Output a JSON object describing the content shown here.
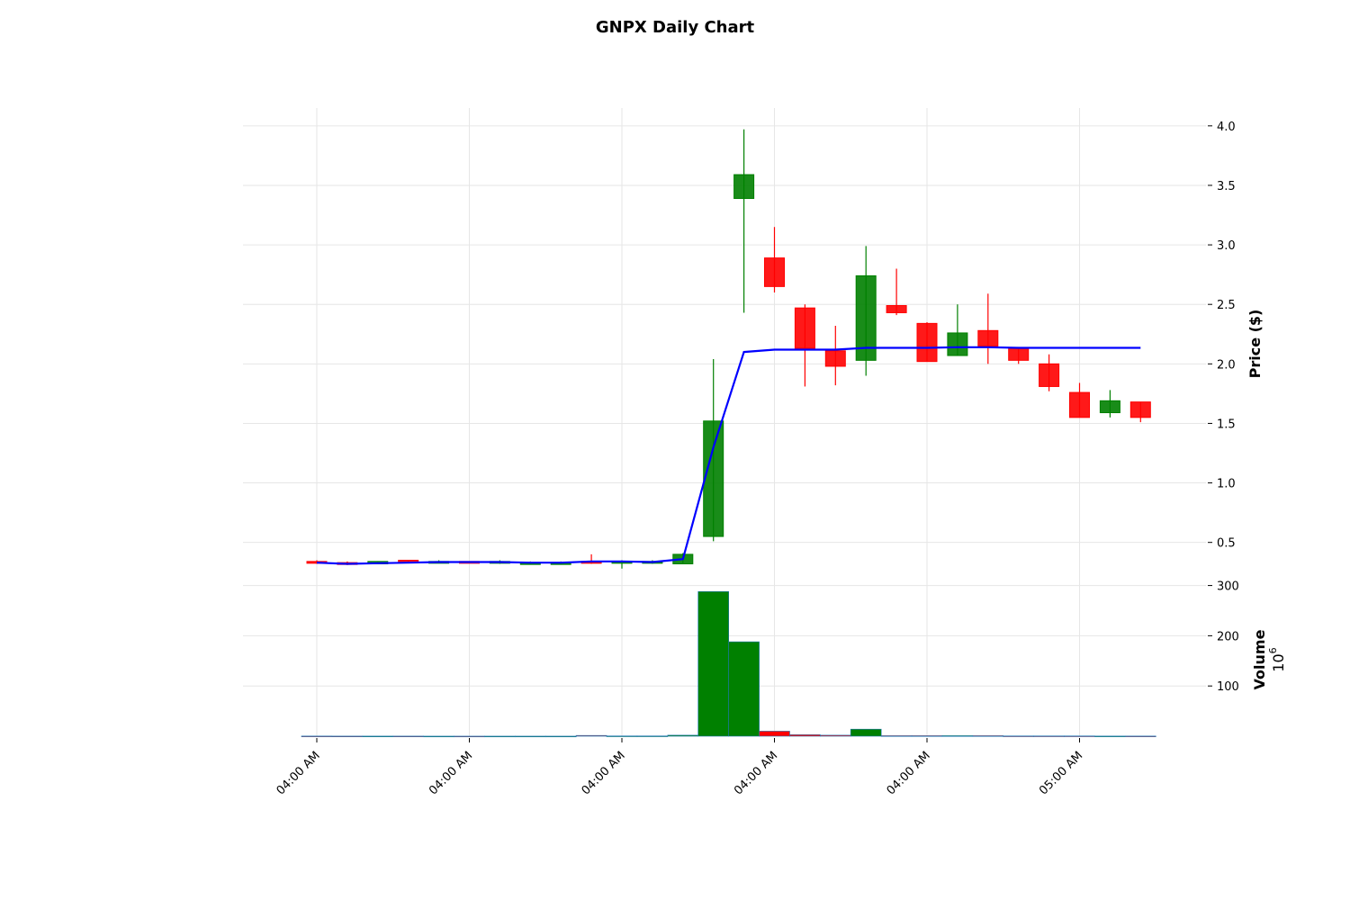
{
  "chart_data": {
    "type": "candlestick",
    "title": "GNPX Daily Chart",
    "colors": {
      "up": "#008000",
      "down": "#ff0000",
      "ma": "#0000ff",
      "grid": "#e6e6e6"
    },
    "x_tick_labels": [
      "04:00 AM",
      "04:00 AM",
      "04:00 AM",
      "04:00 AM",
      "04:00 AM",
      "05:00 AM"
    ],
    "x_tick_positions": [
      0,
      5,
      10,
      15,
      20,
      25
    ],
    "price_panel": {
      "ylabel": "Price ($)",
      "ylim": [
        0.18,
        4.15
      ],
      "yticks": [
        0.5,
        1.0,
        1.5,
        2.0,
        2.5,
        3.0,
        3.5,
        4.0
      ],
      "ytick_labels": [
        "0.5",
        "1.0",
        "1.5",
        "2.0",
        "2.5",
        "3.0",
        "3.5",
        "4.0"
      ]
    },
    "volume_panel": {
      "ylabel": "Volume",
      "multiplier_label": "10",
      "multiplier_exp": "6",
      "ylim": [
        0,
        310
      ],
      "yticks": [
        100,
        200,
        300
      ],
      "ytick_labels": [
        "100",
        "200",
        "300"
      ]
    },
    "candles": [
      {
        "i": 0,
        "open": 0.34,
        "high": 0.35,
        "low": 0.32,
        "close": 0.33,
        "volume": 0.3
      },
      {
        "i": 1,
        "open": 0.33,
        "high": 0.34,
        "low": 0.31,
        "close": 0.32,
        "volume": 0.2
      },
      {
        "i": 2,
        "open": 0.32,
        "high": 0.34,
        "low": 0.32,
        "close": 0.34,
        "volume": 0.2
      },
      {
        "i": 3,
        "open": 0.35,
        "high": 0.35,
        "low": 0.33,
        "close": 0.34,
        "volume": 0.2
      },
      {
        "i": 4,
        "open": 0.34,
        "high": 0.35,
        "low": 0.33,
        "close": 0.34,
        "volume": 0.1
      },
      {
        "i": 5,
        "open": 0.34,
        "high": 0.34,
        "low": 0.33,
        "close": 0.33,
        "volume": 0.1
      },
      {
        "i": 6,
        "open": 0.34,
        "high": 0.35,
        "low": 0.32,
        "close": 0.34,
        "volume": 0.1
      },
      {
        "i": 7,
        "open": 0.33,
        "high": 0.34,
        "low": 0.32,
        "close": 0.33,
        "volume": 0.1
      },
      {
        "i": 8,
        "open": 0.32,
        "high": 0.34,
        "low": 0.32,
        "close": 0.33,
        "volume": 0.1
      },
      {
        "i": 9,
        "open": 0.34,
        "high": 0.4,
        "low": 0.32,
        "close": 0.33,
        "volume": 1.5
      },
      {
        "i": 10,
        "open": 0.33,
        "high": 0.35,
        "low": 0.28,
        "close": 0.34,
        "volume": 0.5
      },
      {
        "i": 11,
        "open": 0.34,
        "high": 0.35,
        "low": 0.32,
        "close": 0.34,
        "volume": 0.5
      },
      {
        "i": 12,
        "open": 0.32,
        "high": 0.41,
        "low": 0.32,
        "close": 0.4,
        "volume": 2.0
      },
      {
        "i": 13,
        "open": 0.55,
        "high": 2.04,
        "low": 0.51,
        "close": 1.52,
        "volume": 288
      },
      {
        "i": 14,
        "open": 3.39,
        "high": 3.97,
        "low": 2.43,
        "close": 3.59,
        "volume": 188
      },
      {
        "i": 15,
        "open": 2.89,
        "high": 3.15,
        "low": 2.6,
        "close": 2.65,
        "volume": 10
      },
      {
        "i": 16,
        "open": 2.47,
        "high": 2.5,
        "low": 1.81,
        "close": 2.13,
        "volume": 3
      },
      {
        "i": 17,
        "open": 2.11,
        "high": 2.32,
        "low": 1.82,
        "close": 1.98,
        "volume": 2
      },
      {
        "i": 18,
        "open": 2.03,
        "high": 2.99,
        "low": 1.9,
        "close": 2.74,
        "volume": 14
      },
      {
        "i": 19,
        "open": 2.49,
        "high": 2.8,
        "low": 2.41,
        "close": 2.43,
        "volume": 1
      },
      {
        "i": 20,
        "open": 2.34,
        "high": 2.35,
        "low": 2.02,
        "close": 2.02,
        "volume": 1
      },
      {
        "i": 21,
        "open": 2.07,
        "high": 2.5,
        "low": 2.07,
        "close": 2.26,
        "volume": 1
      },
      {
        "i": 22,
        "open": 2.28,
        "high": 2.59,
        "low": 2.0,
        "close": 2.15,
        "volume": 1
      },
      {
        "i": 23,
        "open": 2.13,
        "high": 2.13,
        "low": 2.0,
        "close": 2.03,
        "volume": 0.5
      },
      {
        "i": 24,
        "open": 2.0,
        "high": 2.08,
        "low": 1.77,
        "close": 1.81,
        "volume": 0.5
      },
      {
        "i": 25,
        "open": 1.76,
        "high": 1.84,
        "low": 1.55,
        "close": 1.55,
        "volume": 0.5
      },
      {
        "i": 26,
        "open": 1.59,
        "high": 1.78,
        "low": 1.55,
        "close": 1.69,
        "volume": 0.3
      },
      {
        "i": 27,
        "open": 1.68,
        "high": 1.68,
        "low": 1.51,
        "close": 1.55,
        "volume": 0.3
      }
    ],
    "moving_average": [
      {
        "i": 0,
        "value": 0.33
      },
      {
        "i": 1,
        "value": 0.32
      },
      {
        "i": 2,
        "value": 0.325
      },
      {
        "i": 3,
        "value": 0.33
      },
      {
        "i": 4,
        "value": 0.335
      },
      {
        "i": 5,
        "value": 0.335
      },
      {
        "i": 6,
        "value": 0.335
      },
      {
        "i": 7,
        "value": 0.33
      },
      {
        "i": 8,
        "value": 0.33
      },
      {
        "i": 9,
        "value": 0.34
      },
      {
        "i": 10,
        "value": 0.34
      },
      {
        "i": 11,
        "value": 0.335
      },
      {
        "i": 12,
        "value": 0.36
      },
      {
        "i": 13,
        "value": 1.3
      },
      {
        "i": 14,
        "value": 2.1
      },
      {
        "i": 15,
        "value": 2.12
      },
      {
        "i": 16,
        "value": 2.12
      },
      {
        "i": 17,
        "value": 2.12
      },
      {
        "i": 18,
        "value": 2.135
      },
      {
        "i": 19,
        "value": 2.135
      },
      {
        "i": 20,
        "value": 2.135
      },
      {
        "i": 21,
        "value": 2.14
      },
      {
        "i": 22,
        "value": 2.14
      },
      {
        "i": 23,
        "value": 2.135
      },
      {
        "i": 24,
        "value": 2.135
      },
      {
        "i": 25,
        "value": 2.135
      },
      {
        "i": 26,
        "value": 2.135
      },
      {
        "i": 27,
        "value": 2.135
      }
    ]
  }
}
